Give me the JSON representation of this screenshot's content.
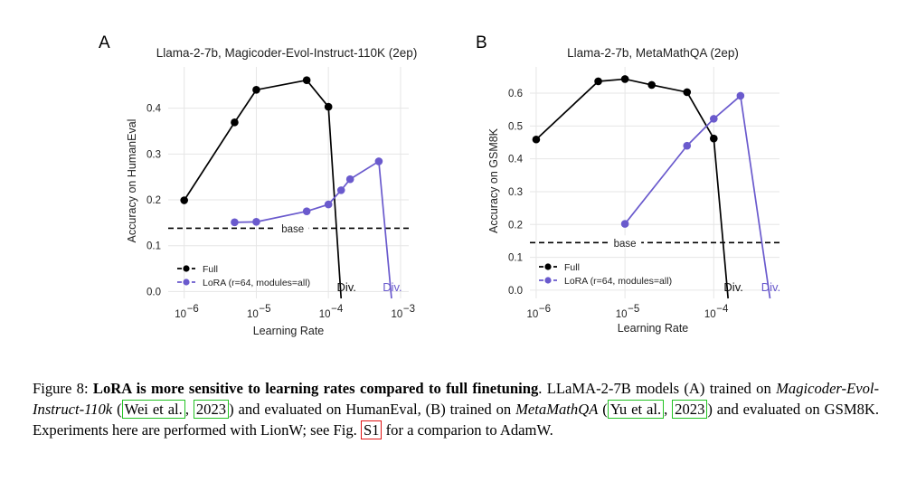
{
  "chart_data": [
    {
      "panel": "A",
      "type": "line",
      "title": "Llama-2-7b, Magicoder-Evol-Instruct-110K (2ep)",
      "xlabel": "Learning Rate",
      "ylabel": "Accuracy on HumanEval",
      "xscale": "log",
      "xlim": [
        6e-07,
        0.0013
      ],
      "ylim": [
        -0.015,
        0.49
      ],
      "xticks": [
        {
          "v": 1e-06,
          "exp": "−6"
        },
        {
          "v": 1e-05,
          "exp": "−5"
        },
        {
          "v": 0.0001,
          "exp": "−4"
        },
        {
          "v": 0.001,
          "exp": "−3"
        }
      ],
      "yticks": [
        {
          "v": 0.0,
          "label": "0.0"
        },
        {
          "v": 0.1,
          "label": "0.1"
        },
        {
          "v": 0.2,
          "label": "0.2"
        },
        {
          "v": 0.3,
          "label": "0.3"
        },
        {
          "v": 0.4,
          "label": "0.4"
        }
      ],
      "baseline": {
        "label": "base",
        "value": 0.138
      },
      "series": [
        {
          "name": "Full",
          "color": "#000000",
          "x": [
            1e-06,
            5e-06,
            1e-05,
            5e-05,
            0.0001
          ],
          "y": [
            0.199,
            0.369,
            0.44,
            0.461,
            0.403
          ],
          "divergence": {
            "x": 0.00015,
            "label": "Div."
          }
        },
        {
          "name": "LoRA (r=64, modules=all)",
          "color": "#6a5acd",
          "x": [
            5e-06,
            1e-05,
            5e-05,
            0.0001,
            0.00015,
            0.0002,
            0.0005
          ],
          "y": [
            0.151,
            0.152,
            0.175,
            0.19,
            0.221,
            0.245,
            0.284
          ],
          "divergence": {
            "x": 0.00075,
            "label": "Div."
          }
        }
      ],
      "legend": "bottom-left"
    },
    {
      "panel": "B",
      "type": "line",
      "title": "Llama-2-7b, MetaMathQA (2ep)",
      "xlabel": "Learning Rate",
      "ylabel": "Accuracy on GSM8K",
      "xscale": "log",
      "xlim": [
        8.5e-07,
        0.00055
      ],
      "ylim": [
        -0.025,
        0.68
      ],
      "xticks": [
        {
          "v": 1e-06,
          "exp": "−6"
        },
        {
          "v": 1e-05,
          "exp": "−5"
        },
        {
          "v": 0.0001,
          "exp": "−4"
        }
      ],
      "yticks": [
        {
          "v": 0.0,
          "label": "0.0"
        },
        {
          "v": 0.1,
          "label": "0.1"
        },
        {
          "v": 0.2,
          "label": "0.2"
        },
        {
          "v": 0.3,
          "label": "0.3"
        },
        {
          "v": 0.4,
          "label": "0.4"
        },
        {
          "v": 0.5,
          "label": "0.5"
        },
        {
          "v": 0.6,
          "label": "0.6"
        }
      ],
      "baseline": {
        "label": "base",
        "value": 0.145
      },
      "series": [
        {
          "name": "Full",
          "color": "#000000",
          "x": [
            1e-06,
            5e-06,
            1e-05,
            2e-05,
            5e-05,
            0.0001
          ],
          "y": [
            0.459,
            0.636,
            0.643,
            0.625,
            0.603,
            0.462
          ],
          "divergence": {
            "x": 0.000145,
            "label": "Div."
          }
        },
        {
          "name": "LoRA (r=64, modules=all)",
          "color": "#6a5acd",
          "x": [
            1e-05,
            5e-05,
            0.0001,
            0.0002
          ],
          "y": [
            0.202,
            0.44,
            0.522,
            0.592
          ],
          "divergence": {
            "x": 0.00043,
            "label": "Div."
          }
        }
      ],
      "legend": "bottom-left"
    }
  ],
  "caption": {
    "prefix": "Figure 8: ",
    "bold": "LoRA is more sensitive to learning rates compared to full finetuning",
    "t1": ". LLaMA-2-7B models (A) trained on ",
    "i1": "Magicoder-Evol-Instruct-110k",
    "t2": " (",
    "c1a": "Wei et al.",
    "c1sep": ", ",
    "c1b": "2023",
    "t3": ") and evaluated on HumanEval, (B) trained on ",
    "i2": "MetaMathQA",
    "t4": " (",
    "c2a": "Yu et al.",
    "c2sep": ", ",
    "c2b": "2023",
    "t5": ") and evaluated on GSM8K. Experiments here are performed with LionW; see Fig. ",
    "ref": "S1",
    "t6": " for a comparion to AdamW."
  }
}
